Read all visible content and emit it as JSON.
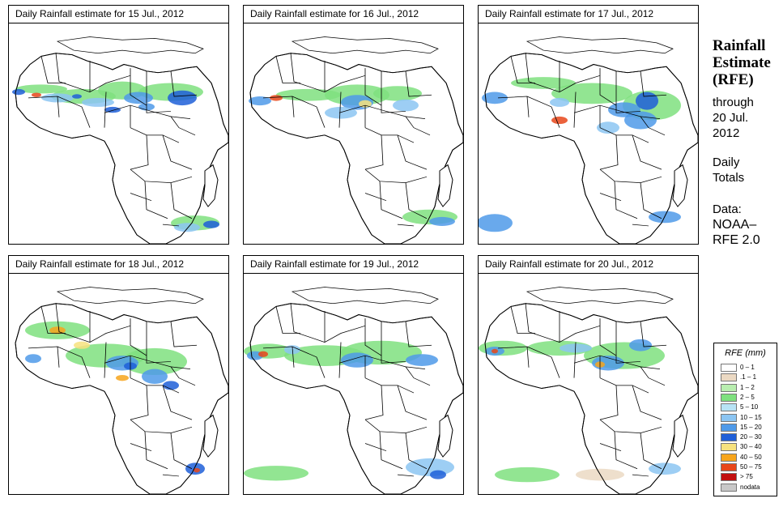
{
  "panels": [
    {
      "title": "Daily Rainfall estimate for  15 Jul., 2012"
    },
    {
      "title": "Daily Rainfall estimate for  16 Jul., 2012"
    },
    {
      "title": "Daily Rainfall estimate for  17 Jul., 2012"
    },
    {
      "title": "Daily Rainfall estimate for  18 Jul., 2012"
    },
    {
      "title": "Daily Rainfall estimate for  19 Jul., 2012"
    },
    {
      "title": "Daily Rainfall estimate for  20 Jul., 2012"
    }
  ],
  "side": {
    "title_line1": "Rainfall",
    "title_line2": "Estimate",
    "title_line3": "(RFE)",
    "through_line1": "through",
    "through_line2": "20 Jul.",
    "through_line3": "2012",
    "totals_line1": "Daily",
    "totals_line2": "Totals",
    "data_line1": "Data:",
    "data_line2": "NOAA–",
    "data_line3": "RFE 2.0"
  },
  "legend": {
    "title": "RFE (mm)",
    "classes": [
      {
        "label": "0 – 1",
        "color": "#ffffff"
      },
      {
        "label": ".1 – 1",
        "color": "#ebd9c3"
      },
      {
        "label": "1 – 2",
        "color": "#b9eeb0"
      },
      {
        "label": "2 – 5",
        "color": "#7fe17f"
      },
      {
        "label": "5 – 10",
        "color": "#b8e3f5"
      },
      {
        "label": "10 – 15",
        "color": "#8cc5f2"
      },
      {
        "label": "15 – 20",
        "color": "#4f9ae9"
      },
      {
        "label": "20 – 30",
        "color": "#1f5fd8"
      },
      {
        "label": "30 – 40",
        "color": "#f7e27e"
      },
      {
        "label": "40 – 50",
        "color": "#f7a51c"
      },
      {
        "label": "50 – 75",
        "color": "#e8471a"
      },
      {
        "label": "> 75",
        "color": "#c21010"
      },
      {
        "label": "nodata",
        "color": "#c8c8c8"
      }
    ]
  }
}
